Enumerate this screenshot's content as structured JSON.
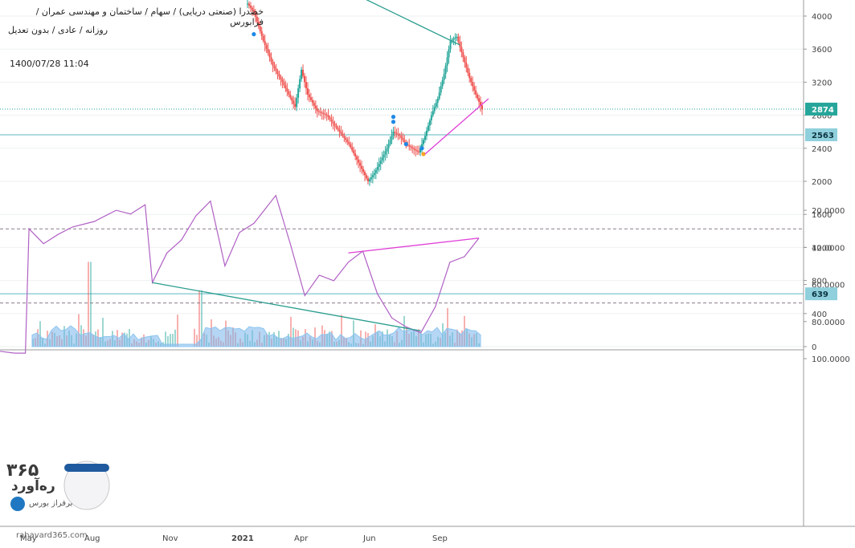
{
  "header": {
    "symbol_line": "خضدرا (صنعتی دریایی) / سهام / ساختمان و مهندسی عمران / فرابورس",
    "settings_line": "روزانه / عادی / بدون تعدیل",
    "datetime": "1400/07/28 11:04"
  },
  "watermark": {
    "number": "۳۶۵",
    "name": "ره‌آورد",
    "sub": "برفراز بورس",
    "url": "rahavard365.com"
  },
  "colors": {
    "up": "#26a69a",
    "down": "#ef5350",
    "level_line": "#5fb7c2",
    "last_price": "#26a69a",
    "trend_teal": "#2a9d8f",
    "trend_magenta": "#e040d8",
    "rsi_line": "#b061c4",
    "rsi_band": "#f1dff0",
    "volume_ma": "#8ec6f0"
  },
  "chart_data": [
    {
      "type": "candlestick",
      "pane": "price",
      "ylim": [
        0,
        4200
      ],
      "y_ticks": [
        0,
        400,
        800,
        1200,
        1600,
        2000,
        2400,
        2800,
        3200,
        3600,
        4000
      ],
      "x_ticks": [
        "May",
        "Aug",
        "Nov",
        "2021",
        "Apr",
        "Jun",
        "Sep"
      ],
      "last_price": 2874,
      "horizontal_levels": [
        2563,
        639
      ],
      "price_path": [
        {
          "t": 0,
          "v": 4150
        },
        {
          "t": 2,
          "v": 4050
        },
        {
          "t": 5,
          "v": 3700
        },
        {
          "t": 8,
          "v": 3400
        },
        {
          "t": 11,
          "v": 3200
        },
        {
          "t": 13,
          "v": 3050
        },
        {
          "t": 15,
          "v": 2900
        },
        {
          "t": 17,
          "v": 3350
        },
        {
          "t": 19,
          "v": 3050
        },
        {
          "t": 22,
          "v": 2850
        },
        {
          "t": 25,
          "v": 2800
        },
        {
          "t": 27,
          "v": 2700
        },
        {
          "t": 30,
          "v": 2550
        },
        {
          "t": 32,
          "v": 2450
        },
        {
          "t": 34,
          "v": 2300
        },
        {
          "t": 36,
          "v": 2150
        },
        {
          "t": 38,
          "v": 2000
        },
        {
          "t": 40,
          "v": 2100
        },
        {
          "t": 42,
          "v": 2250
        },
        {
          "t": 44,
          "v": 2400
        },
        {
          "t": 46,
          "v": 2600
        },
        {
          "t": 48,
          "v": 2550
        },
        {
          "t": 50,
          "v": 2450
        },
        {
          "t": 52,
          "v": 2400
        },
        {
          "t": 54,
          "v": 2350
        },
        {
          "t": 56,
          "v": 2550
        },
        {
          "t": 58,
          "v": 2800
        },
        {
          "t": 60,
          "v": 3000
        },
        {
          "t": 62,
          "v": 3300
        },
        {
          "t": 64,
          "v": 3700
        },
        {
          "t": 66,
          "v": 3750
        },
        {
          "t": 68,
          "v": 3500
        },
        {
          "t": 70,
          "v": 3250
        },
        {
          "t": 72,
          "v": 3050
        },
        {
          "t": 74,
          "v": 2874
        }
      ],
      "trendlines": [
        {
          "name": "resistance",
          "from": {
            "t": 25,
            "v": 4430
          },
          "to": {
            "t": 67,
            "v": 3650
          }
        },
        {
          "name": "support",
          "from": {
            "t": 56,
            "v": 2330
          },
          "to": {
            "t": 76,
            "v": 3000
          }
        }
      ],
      "volume_ylim": [
        0,
        1600
      ]
    },
    {
      "type": "line",
      "pane": "rsi",
      "ylim": [
        10,
        100
      ],
      "y_ticks": [
        20,
        40,
        60,
        80,
        100
      ],
      "band": [
        30,
        70
      ],
      "values": [
        {
          "t": 0,
          "v": 96
        },
        {
          "t": 2,
          "v": 97
        },
        {
          "t": 3.5,
          "v": 97
        },
        {
          "t": 4,
          "v": 30
        },
        {
          "t": 6,
          "v": 38
        },
        {
          "t": 8,
          "v": 33
        },
        {
          "t": 10,
          "v": 29
        },
        {
          "t": 13,
          "v": 26
        },
        {
          "t": 16,
          "v": 20
        },
        {
          "t": 18,
          "v": 22
        },
        {
          "t": 20,
          "v": 17
        },
        {
          "t": 21,
          "v": 59
        },
        {
          "t": 23,
          "v": 43
        },
        {
          "t": 25,
          "v": 36
        },
        {
          "t": 27,
          "v": 23
        },
        {
          "t": 29,
          "v": 15
        },
        {
          "t": 31,
          "v": 50
        },
        {
          "t": 33,
          "v": 32
        },
        {
          "t": 35,
          "v": 27
        },
        {
          "t": 37,
          "v": 17
        },
        {
          "t": 38,
          "v": 12
        },
        {
          "t": 40,
          "v": 38
        },
        {
          "t": 42,
          "v": 66
        },
        {
          "t": 44,
          "v": 55
        },
        {
          "t": 46,
          "v": 58
        },
        {
          "t": 48,
          "v": 48
        },
        {
          "t": 50,
          "v": 42
        },
        {
          "t": 52,
          "v": 65
        },
        {
          "t": 54,
          "v": 78
        },
        {
          "t": 56,
          "v": 83
        },
        {
          "t": 58,
          "v": 86
        },
        {
          "t": 60,
          "v": 72
        },
        {
          "t": 62,
          "v": 48
        },
        {
          "t": 64,
          "v": 45
        },
        {
          "t": 66,
          "v": 35
        }
      ],
      "trendlines": [
        {
          "name": "rsi-rising",
          "from": {
            "t": 21,
            "v": 59
          },
          "to": {
            "t": 58,
            "v": 85
          }
        },
        {
          "name": "rsi-falling",
          "from": {
            "t": 48,
            "v": 43
          },
          "to": {
            "t": 66,
            "v": 35
          }
        }
      ]
    }
  ]
}
